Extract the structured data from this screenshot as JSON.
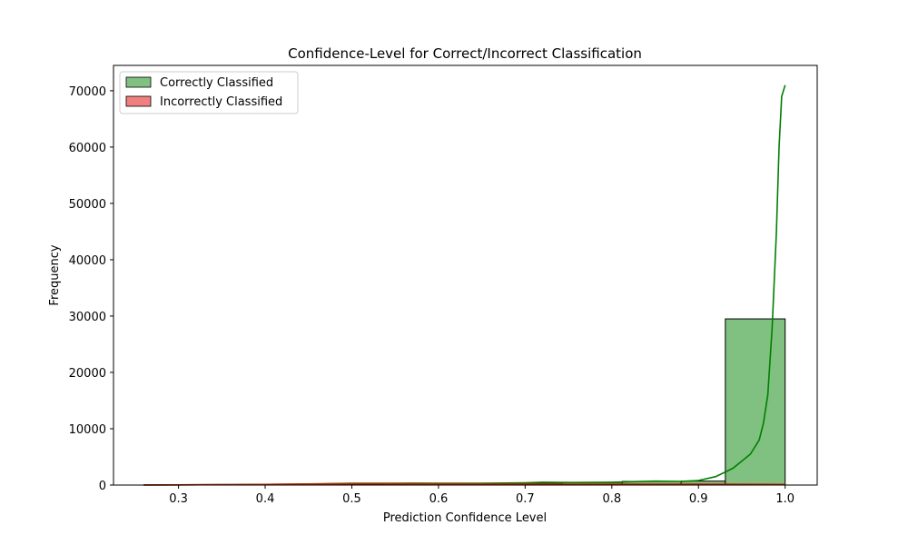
{
  "chart_data": {
    "type": "bar",
    "title": "Confidence-Level for Correct/Incorrect Classification",
    "xlabel": "Prediction Confidence Level",
    "ylabel": "Frequency",
    "xlim": [
      0.225,
      1.037
    ],
    "ylim": [
      0,
      74500
    ],
    "xticks": [
      0.3,
      0.4,
      0.5,
      0.6,
      0.7,
      0.8,
      0.9,
      1.0
    ],
    "xtick_labels": [
      "0.3",
      "0.4",
      "0.5",
      "0.6",
      "0.7",
      "0.8",
      "0.9",
      "1.0"
    ],
    "yticks": [
      0,
      10000,
      20000,
      30000,
      40000,
      50000,
      60000,
      70000
    ],
    "ytick_labels": [
      "0",
      "10000",
      "20000",
      "30000",
      "40000",
      "50000",
      "60000",
      "70000"
    ],
    "legend_position": "top-left",
    "grid": false,
    "series": [
      {
        "name": "Correctly Classified",
        "color": "#008000",
        "bar_fill": "#80c080",
        "bin_edges": [
          0.26,
          0.329,
          0.398,
          0.467,
          0.536,
          0.605,
          0.674,
          0.743,
          0.812,
          0.88,
          0.931,
          1.0
        ],
        "counts": [
          20,
          40,
          80,
          250,
          300,
          280,
          350,
          450,
          650,
          700,
          29500
        ],
        "kde_x": [
          0.26,
          0.3,
          0.35,
          0.4,
          0.45,
          0.5,
          0.55,
          0.57,
          0.6,
          0.65,
          0.7,
          0.72,
          0.75,
          0.8,
          0.85,
          0.88,
          0.9,
          0.92,
          0.94,
          0.96,
          0.97,
          0.975,
          0.98,
          0.985,
          0.99,
          0.993,
          0.996,
          1.0
        ],
        "kde_y": [
          10,
          30,
          60,
          120,
          200,
          300,
          320,
          340,
          300,
          310,
          400,
          500,
          450,
          500,
          700,
          650,
          800,
          1500,
          3000,
          5500,
          8000,
          11000,
          16000,
          28000,
          45000,
          60000,
          69000,
          71000
        ]
      },
      {
        "name": "Incorrectly Classified",
        "color": "#cc2200",
        "bar_fill": "#f08080",
        "bin_edges": [
          0.26,
          0.329,
          0.398,
          0.467,
          0.536,
          0.605,
          0.674,
          0.743,
          0.812,
          0.88,
          0.931,
          1.0
        ],
        "counts": [
          20,
          30,
          60,
          150,
          180,
          150,
          140,
          130,
          120,
          110,
          100
        ],
        "kde_x": [
          0.26,
          0.3,
          0.35,
          0.4,
          0.45,
          0.5,
          0.55,
          0.6,
          0.65,
          0.7,
          0.75,
          0.8,
          0.85,
          0.9,
          0.95,
          1.0
        ],
        "kde_y": [
          20,
          40,
          70,
          110,
          170,
          230,
          220,
          200,
          180,
          170,
          160,
          150,
          150,
          140,
          130,
          120
        ]
      }
    ]
  }
}
